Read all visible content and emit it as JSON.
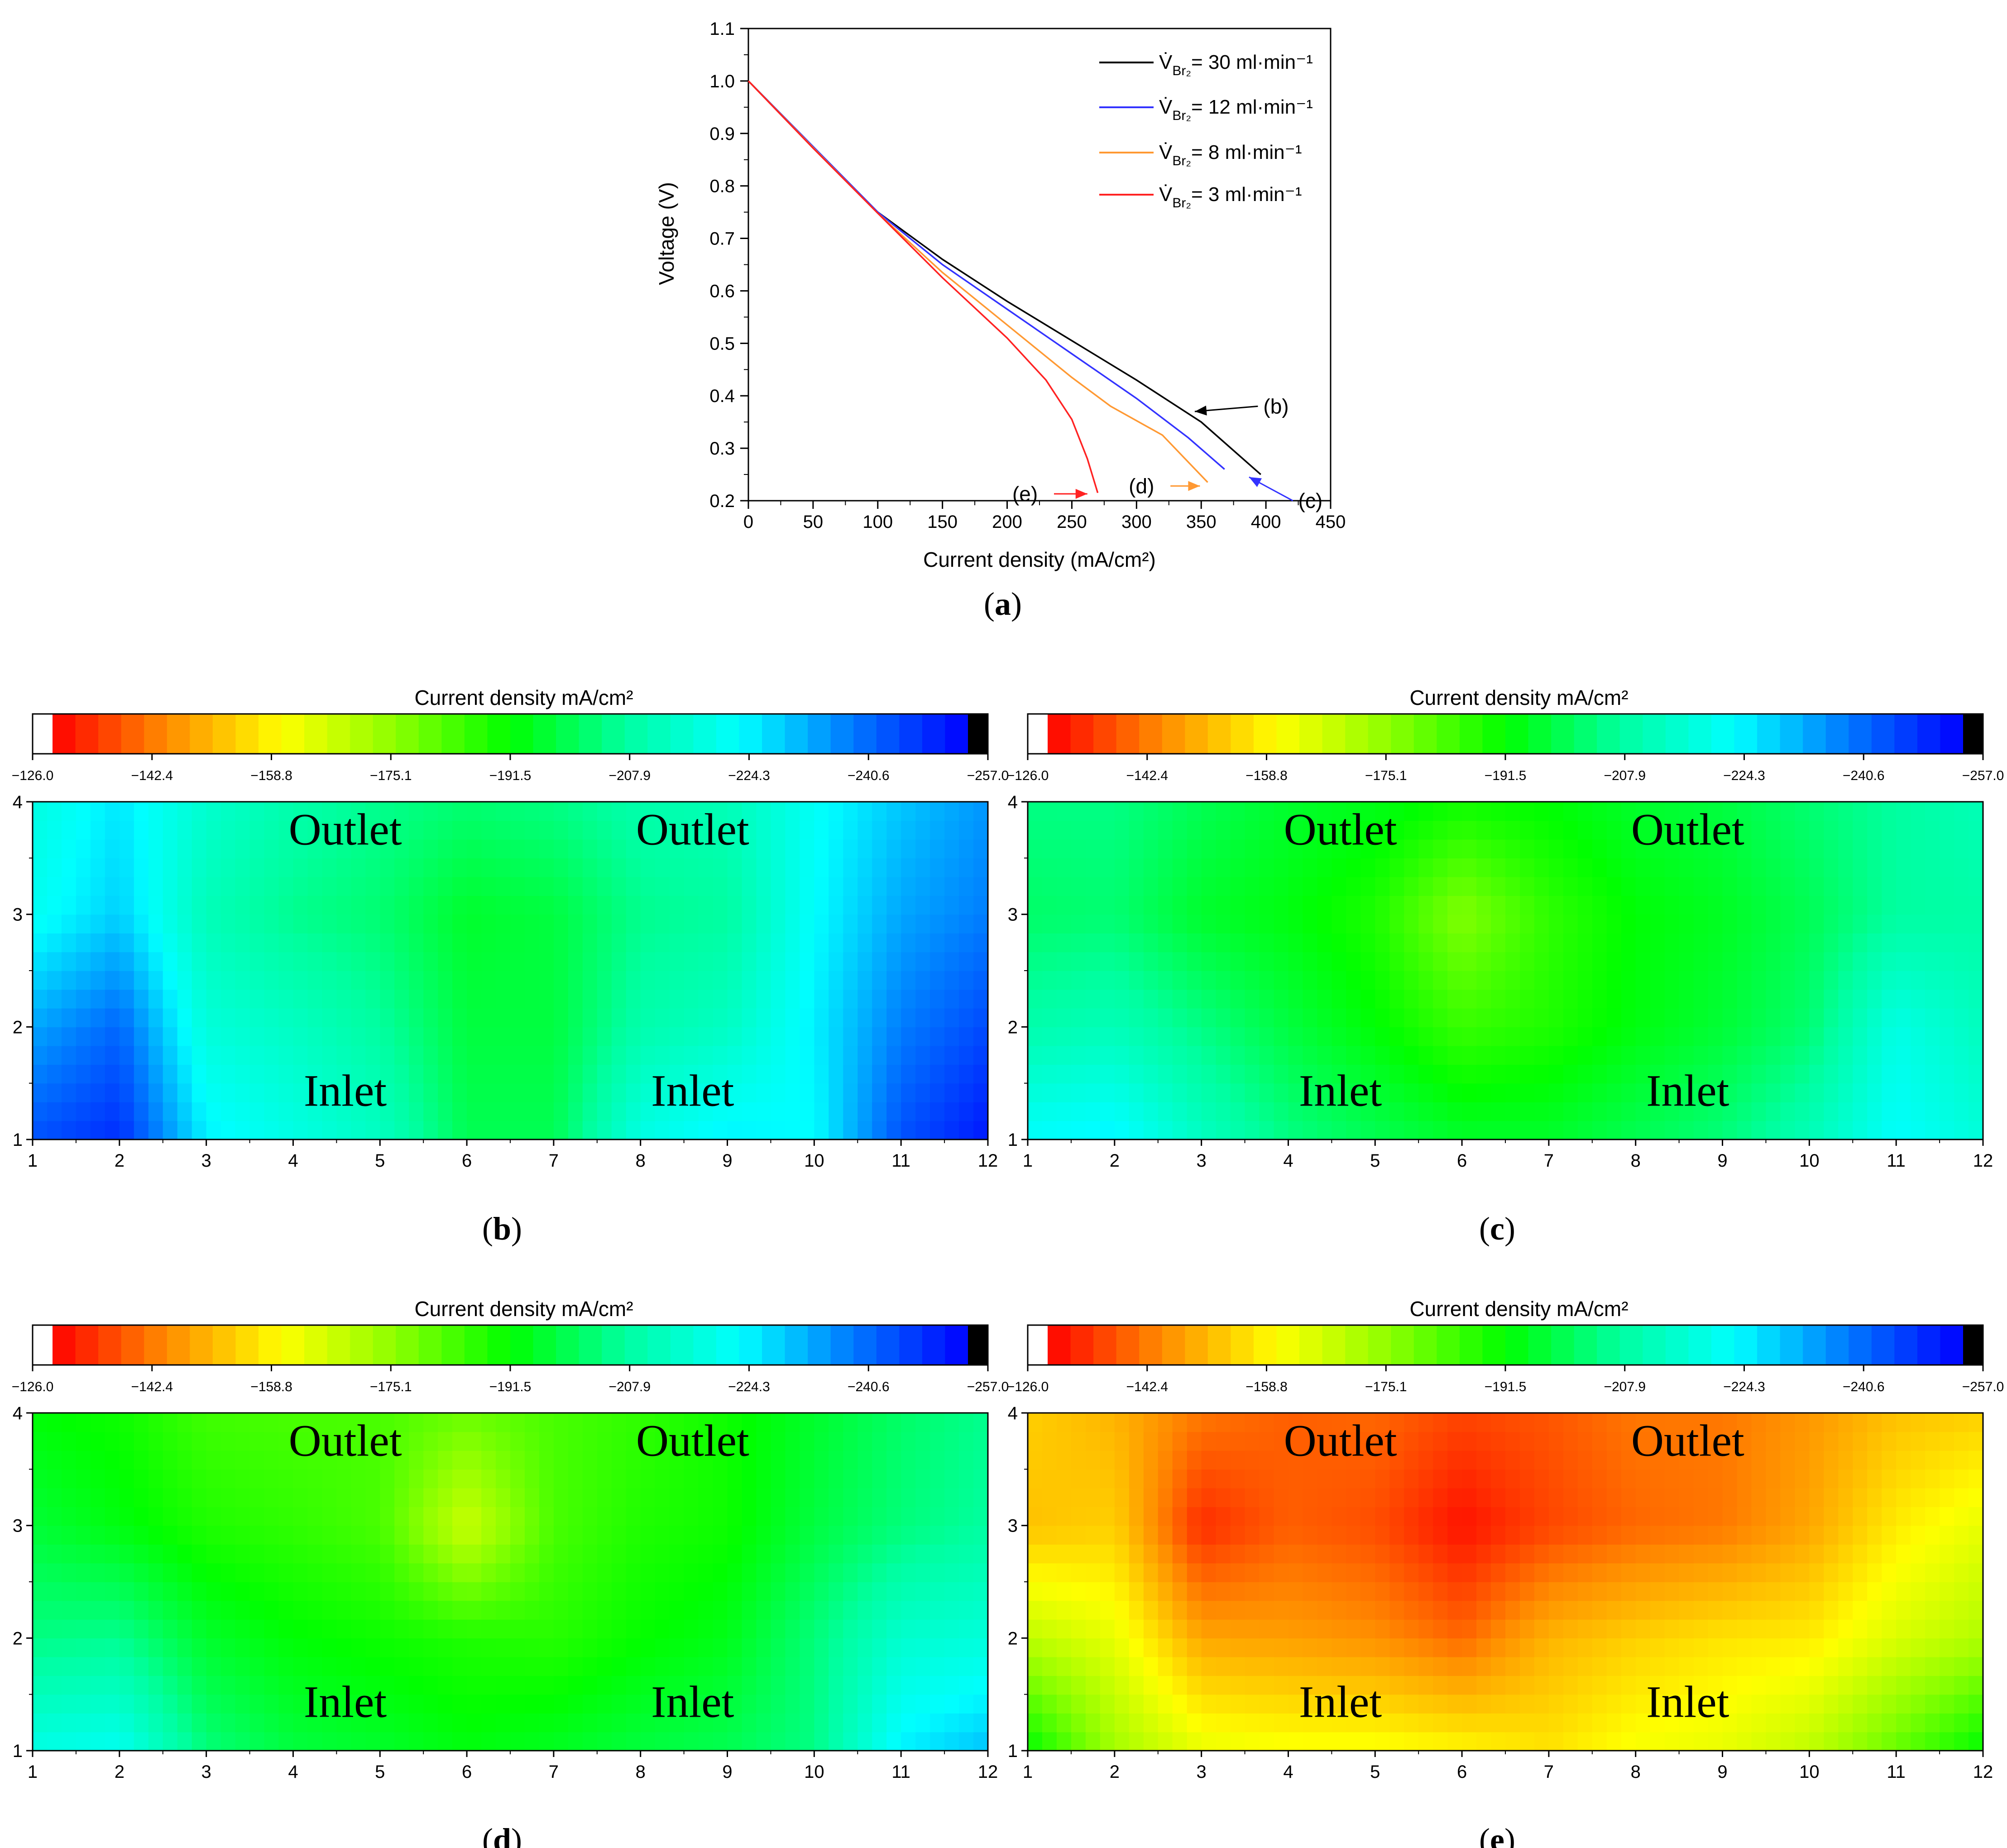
{
  "chart_data": [
    {
      "type": "line",
      "panel_label": "a",
      "title": "",
      "xlabel": "Current density (mA/cm²)",
      "ylabel": "Voltage (V)",
      "xlim": [
        0,
        450
      ],
      "ylim": [
        0.2,
        1.1
      ],
      "xticks": [
        "0",
        "50",
        "100",
        "150",
        "200",
        "250",
        "300",
        "350",
        "400",
        "450"
      ],
      "yticks": [
        "0.2",
        "0.3",
        "0.4",
        "0.5",
        "0.6",
        "0.7",
        "0.8",
        "0.9",
        "1.0",
        "1.1"
      ],
      "legend_position": "top-right",
      "series": [
        {
          "name": "V̇Br₂ = 30 ml·min⁻¹",
          "legend_prefix": "V̇",
          "legend_sub": "Br₂",
          "legend_rest": "= 30 ml·min⁻¹",
          "color": "#000000",
          "x": [
            0,
            50,
            100,
            150,
            200,
            250,
            300,
            350,
            396
          ],
          "y": [
            1.0,
            0.875,
            0.75,
            0.66,
            0.58,
            0.505,
            0.43,
            0.35,
            0.25
          ]
        },
        {
          "name": "V̇Br₂ = 12 ml·min⁻¹",
          "legend_prefix": "V̇",
          "legend_sub": "Br₂",
          "legend_rest": "= 12 ml·min⁻¹",
          "color": "#3333ff",
          "x": [
            0,
            50,
            100,
            150,
            200,
            250,
            300,
            340,
            368
          ],
          "y": [
            1.0,
            0.875,
            0.75,
            0.65,
            0.565,
            0.48,
            0.395,
            0.32,
            0.26
          ]
        },
        {
          "name": "V̇Br₂ = 8 ml·min⁻¹",
          "legend_prefix": "V̇",
          "legend_sub": "Br₂",
          "legend_rest": "= 8 ml·min⁻¹",
          "color": "#ff9933",
          "x": [
            0,
            50,
            100,
            150,
            200,
            250,
            280,
            320,
            355
          ],
          "y": [
            1.0,
            0.873,
            0.748,
            0.635,
            0.535,
            0.435,
            0.38,
            0.325,
            0.235
          ]
        },
        {
          "name": "V̇Br₂ = 3 ml·min⁻¹",
          "legend_prefix": "V̇",
          "legend_sub": "Br₂",
          "legend_rest": "= 3 ml·min⁻¹",
          "color": "#ff2222",
          "x": [
            0,
            50,
            100,
            150,
            200,
            230,
            250,
            262,
            270
          ],
          "y": [
            1.0,
            0.872,
            0.748,
            0.625,
            0.51,
            0.43,
            0.355,
            0.28,
            0.215
          ]
        }
      ],
      "annotations": [
        {
          "text": "(b)",
          "x": 398,
          "y": 0.38,
          "arrow_to_x": 345,
          "arrow_to_y": 0.37,
          "color": "#000000"
        },
        {
          "text": "(c)",
          "x": 425,
          "y": 0.2,
          "arrow_to_x": 387,
          "arrow_to_y": 0.245,
          "color": "#3333ff"
        },
        {
          "text": "(d)",
          "x": 294,
          "y": 0.228,
          "arrow_to_x": 349,
          "arrow_to_y": 0.228,
          "color": "#ff9933"
        },
        {
          "text": "(e)",
          "x": 204,
          "y": 0.213,
          "arrow_to_x": 262,
          "arrow_to_y": 0.213,
          "color": "#ff2222"
        }
      ]
    },
    {
      "type": "heatmap",
      "panel_label": "b",
      "colorbar_title": "Current density mA/cm²",
      "colorbar_ticks": [
        "−126.0",
        "−142.4",
        "−158.8",
        "−175.1",
        "−191.5",
        "−207.9",
        "−224.3",
        "−240.6",
        "−257.0"
      ],
      "clim": [
        -126.0,
        -257.0
      ],
      "x": [
        1,
        2,
        3,
        4,
        5,
        6,
        7,
        8,
        9,
        10,
        11,
        12
      ],
      "y": [
        1,
        2,
        3,
        4
      ],
      "xlim": [
        1,
        12
      ],
      "ylim": [
        1,
        4
      ],
      "region_labels": [
        "Outlet",
        "Outlet",
        "Inlet",
        "Inlet"
      ],
      "z": [
        [
          -246,
          -251,
          -226,
          -220,
          -214,
          -200,
          -200,
          -220,
          -226,
          -224,
          -246,
          -254
        ],
        [
          -235,
          -243,
          -218,
          -214,
          -208,
          -198,
          -198,
          -210,
          -214,
          -226,
          -240,
          -247
        ],
        [
          -222,
          -230,
          -212,
          -206,
          -203,
          -196,
          -198,
          -206,
          -208,
          -224,
          -235,
          -240
        ],
        [
          -219,
          -227,
          -216,
          -210,
          -206,
          -203,
          -205,
          -210,
          -212,
          -223,
          -231,
          -237
        ]
      ]
    },
    {
      "type": "heatmap",
      "panel_label": "c",
      "colorbar_title": "Current density mA/cm²",
      "colorbar_ticks": [
        "−126.0",
        "−142.4",
        "−158.8",
        "−175.1",
        "−191.5",
        "−207.9",
        "−224.3",
        "−240.6",
        "−257.0"
      ],
      "clim": [
        -126.0,
        -257.0
      ],
      "x": [
        1,
        2,
        3,
        4,
        5,
        6,
        7,
        8,
        9,
        10,
        11,
        12
      ],
      "y": [
        1,
        2,
        3,
        4
      ],
      "xlim": [
        1,
        12
      ],
      "ylim": [
        1,
        4
      ],
      "region_labels": [
        "Outlet",
        "Outlet",
        "Inlet",
        "Inlet"
      ],
      "z": [
        [
          -224,
          -226,
          -214,
          -205,
          -200,
          -196,
          -196,
          -200,
          -204,
          -212,
          -224,
          -218
        ],
        [
          -210,
          -212,
          -205,
          -198,
          -192,
          -185,
          -188,
          -193,
          -197,
          -203,
          -220,
          -213
        ],
        [
          -202,
          -203,
          -196,
          -193,
          -188,
          -176,
          -186,
          -192,
          -195,
          -200,
          -208,
          -209
        ],
        [
          -205,
          -205,
          -200,
          -196,
          -194,
          -190,
          -192,
          -196,
          -198,
          -203,
          -208,
          -212
        ]
      ]
    },
    {
      "type": "heatmap",
      "panel_label": "d",
      "colorbar_title": "Current density mA/cm²",
      "colorbar_ticks": [
        "−126.0",
        "−142.4",
        "−158.8",
        "−175.1",
        "−191.5",
        "−207.9",
        "−224.3",
        "−240.6",
        "−257.0"
      ],
      "clim": [
        -126.0,
        -257.0
      ],
      "x": [
        1,
        2,
        3,
        4,
        5,
        6,
        7,
        8,
        9,
        10,
        11,
        12
      ],
      "y": [
        1,
        2,
        3,
        4
      ],
      "xlim": [
        1,
        12
      ],
      "ylim": [
        1,
        4
      ],
      "region_labels": [
        "Outlet",
        "Outlet",
        "Inlet",
        "Inlet"
      ],
      "z": [
        [
          -220,
          -222,
          -204,
          -198,
          -196,
          -193,
          -195,
          -198,
          -200,
          -205,
          -226,
          -232
        ],
        [
          -205,
          -206,
          -196,
          -192,
          -190,
          -188,
          -187,
          -191,
          -194,
          -204,
          -216,
          -218
        ],
        [
          -197,
          -193,
          -188,
          -186,
          -183,
          -166,
          -183,
          -188,
          -190,
          -198,
          -204,
          -208
        ],
        [
          -192,
          -190,
          -184,
          -183,
          -183,
          -179,
          -183,
          -186,
          -190,
          -196,
          -202,
          -206
        ]
      ]
    },
    {
      "type": "heatmap",
      "panel_label": "e",
      "colorbar_title": "Current density mA/cm²",
      "colorbar_ticks": [
        "−126.0",
        "−142.4",
        "−158.8",
        "−175.1",
        "−191.5",
        "−207.9",
        "−224.3",
        "−240.6",
        "−257.0"
      ],
      "clim": [
        -126.0,
        -257.0
      ],
      "x": [
        1,
        2,
        3,
        4,
        5,
        6,
        7,
        8,
        9,
        10,
        11,
        12
      ],
      "y": [
        1,
        2,
        3,
        4
      ],
      "xlim": [
        1,
        12
      ],
      "ylim": [
        1,
        4
      ],
      "region_labels": [
        "Outlet",
        "Outlet",
        "Inlet",
        "Inlet"
      ],
      "z": [
        [
          -192,
          -172,
          -162,
          -160,
          -160,
          -158,
          -155,
          -160,
          -162,
          -168,
          -180,
          -192
        ],
        [
          -168,
          -162,
          -146,
          -145,
          -143,
          -138,
          -148,
          -152,
          -155,
          -156,
          -164,
          -170
        ],
        [
          -150,
          -152,
          -131,
          -137,
          -135,
          -128,
          -134,
          -138,
          -140,
          -146,
          -156,
          -162
        ],
        [
          -152,
          -148,
          -140,
          -137,
          -138,
          -134,
          -136,
          -140,
          -140,
          -144,
          -150,
          -152
        ]
      ]
    }
  ]
}
